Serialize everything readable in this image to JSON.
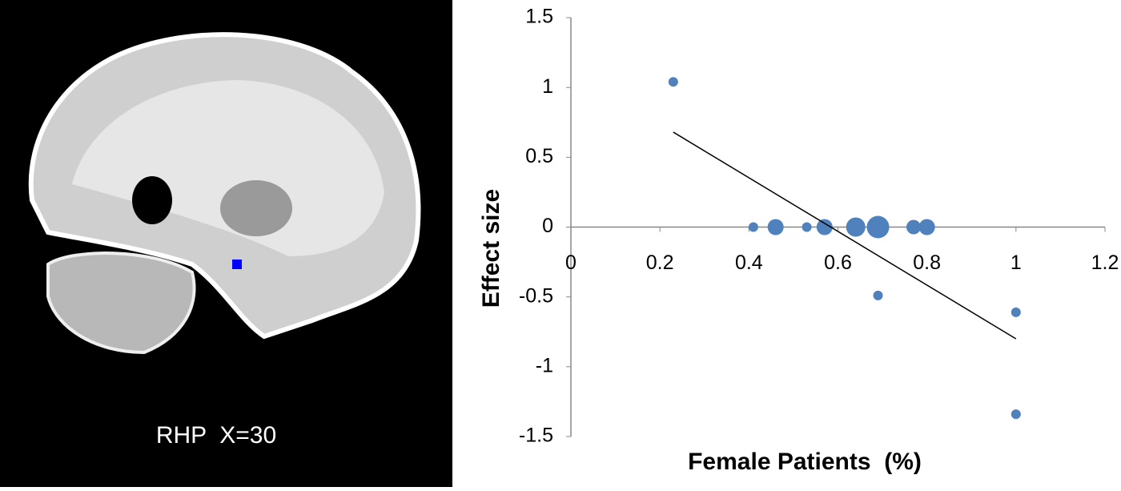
{
  "image_label": "RHP  X=30",
  "chart_data": {
    "type": "scatter",
    "x_label": "Female Patients  (%)",
    "y_label": "Effect size",
    "series": [
      {
        "color": "#4f81bd",
        "x": [
          0.23,
          0.41,
          0.46,
          0.53,
          0.57,
          0.64,
          0.69,
          0.77,
          0.8,
          0.69,
          1,
          1
        ],
        "values": [
          1.04,
          0,
          0,
          0,
          0,
          0,
          0,
          0,
          0,
          -0.49,
          -0.61,
          -1.34
        ],
        "sizes": [
          6,
          6,
          10,
          6,
          10,
          12,
          14,
          9,
          10,
          6,
          6,
          6
        ]
      }
    ],
    "trendline": {
      "color": "#000000",
      "x": [
        0.23,
        1
      ],
      "values": [
        0.68,
        -0.8
      ]
    },
    "xlim": [
      0,
      1.2
    ],
    "xticks": [
      0,
      0.2,
      0.4,
      0.6,
      0.8,
      1,
      1.2
    ],
    "ylim": [
      -1.5,
      1.5
    ],
    "yticks": [
      1.5,
      1,
      0.5,
      0,
      -0.5,
      -1,
      -1.5
    ]
  }
}
